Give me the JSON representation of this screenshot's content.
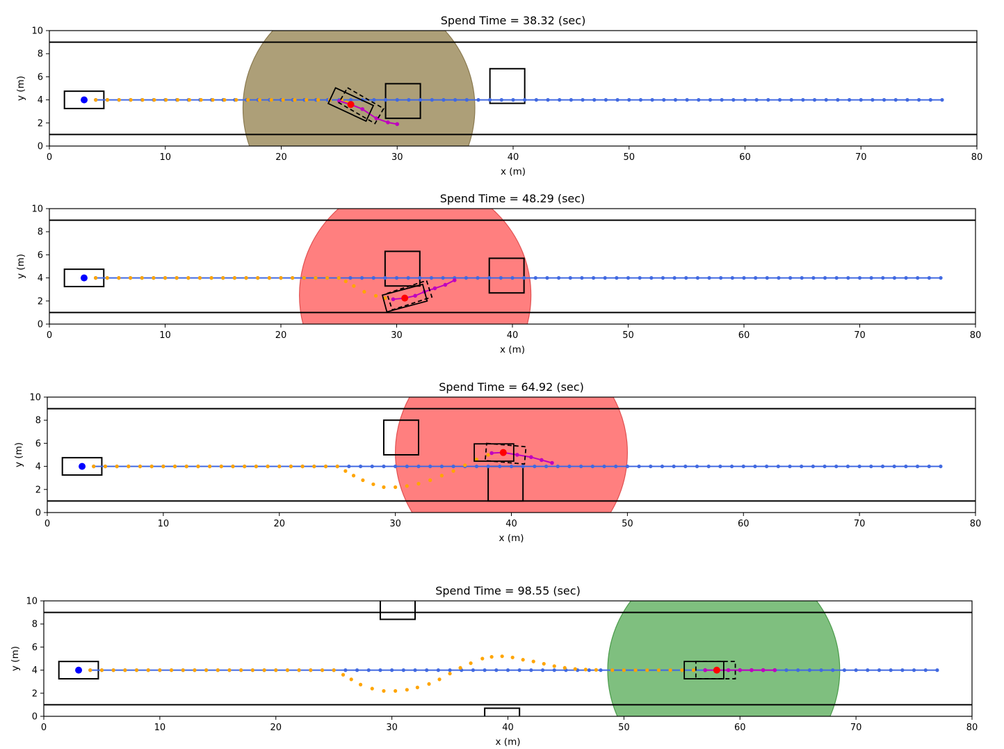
{
  "chart_data": [
    {
      "type": "scatter",
      "title": "Spend Time = 38.32 (sec)",
      "xlabel": "x (m)",
      "ylabel": "y (m)",
      "xlim": [
        0,
        80
      ],
      "ylim": [
        0,
        10
      ],
      "xticks": [
        0,
        10,
        20,
        30,
        40,
        50,
        60,
        70,
        80
      ],
      "yticks": [
        0,
        2,
        4,
        6,
        8,
        10
      ],
      "lane_boundaries_y": [
        1,
        9
      ],
      "start_point": [
        3,
        4
      ],
      "start_box": {
        "x": 1.3,
        "y": 3.25,
        "w": 3.4,
        "h": 1.5
      },
      "obstacles": [
        {
          "x": 29,
          "y": 2.4,
          "w": 3,
          "h": 3
        },
        {
          "x": 38,
          "y": 3.7,
          "w": 3,
          "h": 3
        }
      ],
      "sensing_circle": {
        "cx": 26.7,
        "cy": 3.3,
        "r": 10,
        "color": "#ad9f78",
        "edge": "#8a7a50"
      },
      "vehicle": {
        "cx": 26,
        "cy": 3.6,
        "heading_deg": -25,
        "length": 3.6,
        "width": 1.5
      },
      "vehicle_ghost": {
        "cx": 26.9,
        "cy": 3.5,
        "heading_deg": -30
      },
      "current_position": [
        26,
        3.6
      ],
      "prediction_path": [
        [
          25,
          3.9
        ],
        [
          26,
          3.6
        ],
        [
          27,
          3.2
        ],
        [
          28.2,
          2.4
        ],
        [
          29.2,
          2.05
        ],
        [
          30,
          1.9
        ]
      ],
      "traveled_path": [
        [
          4,
          4
        ],
        [
          25.2,
          4
        ],
        [
          25.6,
          3.8
        ]
      ],
      "reference_path": {
        "x_start": 4,
        "x_end": 77,
        "y": 4
      }
    },
    {
      "type": "scatter",
      "title": "Spend Time = 48.29 (sec)",
      "xlabel": "x (m)",
      "ylabel": "y (m)",
      "xlim": [
        0,
        80
      ],
      "ylim": [
        0,
        10
      ],
      "xticks": [
        0,
        10,
        20,
        30,
        40,
        50,
        60,
        70,
        80
      ],
      "yticks": [
        0,
        2,
        4,
        6,
        8,
        10
      ],
      "lane_boundaries_y": [
        1,
        9
      ],
      "start_point": [
        3,
        4
      ],
      "start_box": {
        "x": 1.3,
        "y": 3.25,
        "w": 3.4,
        "h": 1.5
      },
      "obstacles": [
        {
          "x": 29,
          "y": 3.3,
          "w": 3,
          "h": 3
        },
        {
          "x": 38,
          "y": 2.7,
          "w": 3,
          "h": 3
        }
      ],
      "sensing_circle": {
        "cx": 31.6,
        "cy": 2.5,
        "r": 10,
        "color": "#ff7f7f",
        "edge": "#e05050"
      },
      "vehicle": {
        "cx": 30.7,
        "cy": 2.25,
        "heading_deg": 15,
        "length": 3.6,
        "width": 1.5
      },
      "vehicle_ghost": {
        "cx": 31.1,
        "cy": 2.5,
        "heading_deg": 18
      },
      "current_position": [
        30.7,
        2.25
      ],
      "prediction_path": [
        [
          29.7,
          2.15
        ],
        [
          30.7,
          2.25
        ],
        [
          31.6,
          2.45
        ],
        [
          32.4,
          2.8
        ],
        [
          33.3,
          3.1
        ],
        [
          34.2,
          3.4
        ],
        [
          35,
          3.8
        ]
      ],
      "traveled_path": [
        [
          4,
          4
        ],
        [
          25,
          4
        ],
        [
          25.6,
          3.7
        ],
        [
          26.3,
          3.3
        ],
        [
          27.2,
          2.8
        ],
        [
          28.2,
          2.45
        ],
        [
          29,
          2.25
        ],
        [
          29.7,
          2.15
        ]
      ],
      "reference_path": {
        "x_start": 4,
        "x_end": 77,
        "y": 4
      }
    },
    {
      "type": "scatter",
      "title": "Spend Time = 64.92 (sec)",
      "xlabel": "x (m)",
      "ylabel": "y (m)",
      "xlim": [
        0,
        80
      ],
      "ylim": [
        0,
        10
      ],
      "xticks": [
        0,
        10,
        20,
        30,
        40,
        50,
        60,
        70,
        80
      ],
      "yticks": [
        0,
        2,
        4,
        6,
        8,
        10
      ],
      "lane_boundaries_y": [
        1,
        9
      ],
      "start_point": [
        3,
        4
      ],
      "start_box": {
        "x": 1.3,
        "y": 3.25,
        "w": 3.4,
        "h": 1.5
      },
      "obstacles": [
        {
          "x": 29,
          "y": 5,
          "w": 3,
          "h": 3
        },
        {
          "x": 38,
          "y": 1,
          "w": 3,
          "h": 3
        }
      ],
      "sensing_circle": {
        "cx": 40,
        "cy": 5.2,
        "r": 10,
        "color": "#ff7f7f",
        "edge": "#e05050"
      },
      "vehicle": {
        "cx": 38.5,
        "cy": 5.2,
        "heading_deg": 0,
        "length": 3.4,
        "width": 1.5
      },
      "vehicle_ghost": {
        "cx": 39.5,
        "cy": 5.1,
        "heading_deg": -5
      },
      "current_position": [
        39.3,
        5.2
      ],
      "prediction_path": [
        [
          38.3,
          5.15
        ],
        [
          39.3,
          5.2
        ],
        [
          40.5,
          5.0
        ],
        [
          41.7,
          4.8
        ],
        [
          42.6,
          4.55
        ],
        [
          43.5,
          4.3
        ]
      ],
      "traveled_path": [
        [
          4,
          4
        ],
        [
          25,
          4
        ],
        [
          25.7,
          3.6
        ],
        [
          26.4,
          3.2
        ],
        [
          27.2,
          2.8
        ],
        [
          28.1,
          2.45
        ],
        [
          29,
          2.2
        ],
        [
          30,
          2.2
        ],
        [
          31,
          2.3
        ],
        [
          32,
          2.5
        ],
        [
          33,
          2.8
        ],
        [
          34,
          3.2
        ],
        [
          35,
          3.6
        ],
        [
          36,
          4.1
        ],
        [
          37,
          4.6
        ],
        [
          38,
          5.0
        ]
      ],
      "reference_path": {
        "x_start": 4,
        "x_end": 77,
        "y": 4
      }
    },
    {
      "type": "scatter",
      "title": "Spend Time = 98.55 (sec)",
      "xlabel": "x (m)",
      "ylabel": "y (m)",
      "xlim": [
        0,
        80
      ],
      "ylim": [
        0,
        10
      ],
      "xticks": [
        0,
        10,
        20,
        30,
        40,
        50,
        60,
        70,
        80
      ],
      "yticks": [
        0,
        2,
        4,
        6,
        8,
        10
      ],
      "lane_boundaries_y": [
        1,
        9
      ],
      "start_point": [
        3,
        4
      ],
      "start_box": {
        "x": 1.3,
        "y": 3.25,
        "w": 3.4,
        "h": 1.5
      },
      "obstacles": [
        {
          "x": 29,
          "y": 8.4,
          "w": 3,
          "h": 3
        },
        {
          "x": 38,
          "y": -2.3,
          "w": 3,
          "h": 3
        }
      ],
      "sensing_circle": {
        "cx": 58.6,
        "cy": 4,
        "r": 10,
        "color": "#7fbf7f",
        "edge": "#4a9a4a"
      },
      "vehicle": {
        "cx": 56.9,
        "cy": 4,
        "heading_deg": 0,
        "length": 3.4,
        "width": 1.5
      },
      "vehicle_ghost": {
        "cx": 57.9,
        "cy": 4,
        "heading_deg": 0
      },
      "current_position": [
        58,
        4
      ],
      "prediction_path": [
        [
          57,
          4
        ],
        [
          58,
          4
        ],
        [
          59,
          4
        ],
        [
          60,
          4
        ],
        [
          61,
          4
        ],
        [
          62,
          4
        ],
        [
          63,
          4
        ]
      ],
      "traveled_path": [
        [
          4,
          4
        ],
        [
          25,
          4
        ],
        [
          25.8,
          3.6
        ],
        [
          26.5,
          3.2
        ],
        [
          27.3,
          2.75
        ],
        [
          28.3,
          2.4
        ],
        [
          29.3,
          2.2
        ],
        [
          30.3,
          2.2
        ],
        [
          31.3,
          2.3
        ],
        [
          32.2,
          2.5
        ],
        [
          33.2,
          2.8
        ],
        [
          34.1,
          3.2
        ],
        [
          35,
          3.7
        ],
        [
          35.9,
          4.2
        ],
        [
          36.8,
          4.6
        ],
        [
          37.8,
          5.0
        ],
        [
          38.6,
          5.15
        ],
        [
          39.5,
          5.2
        ],
        [
          40.4,
          5.1
        ],
        [
          41.3,
          4.9
        ],
        [
          42.2,
          4.75
        ],
        [
          43.1,
          4.55
        ],
        [
          44,
          4.35
        ],
        [
          44.9,
          4.2
        ],
        [
          45.8,
          4.1
        ],
        [
          46.7,
          4.05
        ],
        [
          47.6,
          4.02
        ],
        [
          49,
          4
        ],
        [
          57,
          4
        ]
      ],
      "reference_path": {
        "x_start": 4,
        "x_end": 77,
        "y": 4
      }
    }
  ]
}
